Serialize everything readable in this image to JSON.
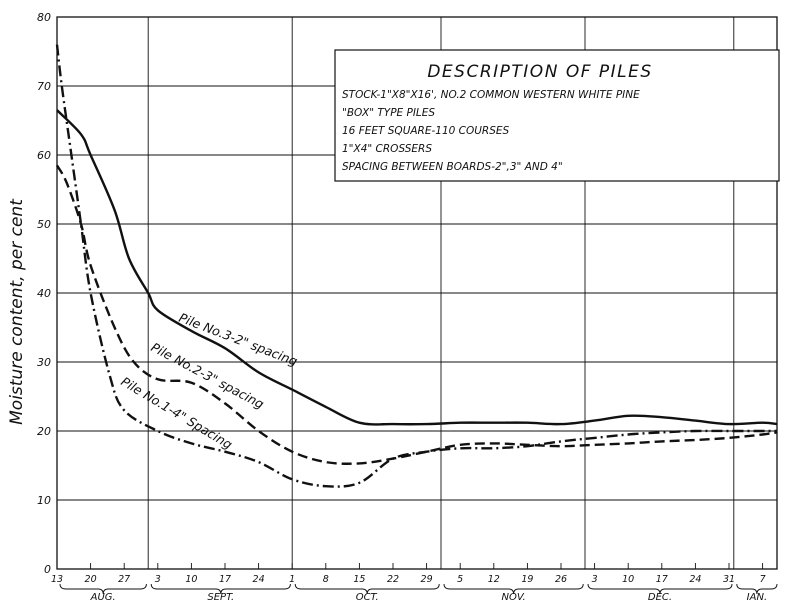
{
  "chart_data": {
    "type": "line",
    "ylabel": "Moisture content, per cent",
    "ylim": [
      0,
      80
    ],
    "yticks": [
      0,
      10,
      20,
      30,
      40,
      50,
      60,
      70,
      80
    ],
    "grid": true,
    "x_start": "Aug 13",
    "x_end": "Jan 10",
    "x_tick_labels": [
      "13",
      "20",
      "27",
      "3",
      "10",
      "17",
      "24",
      "1",
      "8",
      "15",
      "22",
      "29",
      "5",
      "12",
      "19",
      "26",
      "3",
      "10",
      "17",
      "24",
      "31",
      "7"
    ],
    "month_labels": [
      "AUG.",
      "SEPT.",
      "OCT.",
      "NOV.",
      "DEC.",
      "JAN."
    ],
    "description": {
      "title": "DESCRIPTION OF PILES",
      "lines": [
        "STOCK-1\"X8\"X16', NO.2 COMMON WESTERN WHITE PINE",
        "\"BOX\" TYPE PILES",
        "16 FEET SQUARE-110 COURSES",
        "1\"X4\" CROSSERS",
        "SPACING BETWEEN BOARDS-2\",3\" AND 4\""
      ]
    },
    "series": [
      {
        "name": "Pile No.3-2\" spacing",
        "style": "solid",
        "label": "Pile No.3-2\" spacing",
        "points": [
          [
            "Aug 13",
            66.5
          ],
          [
            "Aug 18",
            63
          ],
          [
            "Aug 20",
            60
          ],
          [
            "Aug 25",
            52
          ],
          [
            "Aug 28",
            45
          ],
          [
            "Sep 1",
            40
          ],
          [
            "Sep 3",
            37.5
          ],
          [
            "Sep 10",
            34.5
          ],
          [
            "Sep 17",
            32
          ],
          [
            "Sep 24",
            28.5
          ],
          [
            "Oct 1",
            26
          ],
          [
            "Oct 8",
            23.5
          ],
          [
            "Oct 15",
            21.2
          ],
          [
            "Oct 22",
            21
          ],
          [
            "Oct 29",
            21
          ],
          [
            "Nov 5",
            21.2
          ],
          [
            "Nov 12",
            21.2
          ],
          [
            "Nov 19",
            21.2
          ],
          [
            "Nov 26",
            21
          ],
          [
            "Dec 3",
            21.5
          ],
          [
            "Dec 10",
            22.2
          ],
          [
            "Dec 17",
            22
          ],
          [
            "Dec 24",
            21.5
          ],
          [
            "Dec 31",
            21
          ],
          [
            "Jan 7",
            21.2
          ],
          [
            "Jan 10",
            21
          ]
        ]
      },
      {
        "name": "Pile No.2-3\" spacing",
        "style": "dashed",
        "label": "Pile No.2-3\" spacing",
        "points": [
          [
            "Aug 13",
            58.5
          ],
          [
            "Aug 15",
            56
          ],
          [
            "Aug 18",
            50
          ],
          [
            "Aug 20",
            44
          ],
          [
            "Aug 25",
            35
          ],
          [
            "Aug 29",
            30
          ],
          [
            "Sep 3",
            27.5
          ],
          [
            "Sep 10",
            27
          ],
          [
            "Sep 17",
            24
          ],
          [
            "Sep 24",
            20
          ],
          [
            "Oct 1",
            17
          ],
          [
            "Oct 8",
            15.5
          ],
          [
            "Oct 15",
            15.3
          ],
          [
            "Oct 22",
            16
          ],
          [
            "Oct 29",
            17
          ],
          [
            "Nov 5",
            18
          ],
          [
            "Nov 12",
            18.2
          ],
          [
            "Nov 19",
            18
          ],
          [
            "Nov 26",
            17.8
          ],
          [
            "Dec 3",
            18
          ],
          [
            "Dec 10",
            18.2
          ],
          [
            "Dec 17",
            18.5
          ],
          [
            "Dec 24",
            18.7
          ],
          [
            "Dec 31",
            19
          ],
          [
            "Jan 7",
            19.5
          ],
          [
            "Jan 10",
            19.8
          ]
        ]
      },
      {
        "name": "Pile No.1-4\" Spacing",
        "style": "dashdot",
        "label": "Pile No.1-4\" Spacing",
        "points": [
          [
            "Aug 13",
            76
          ],
          [
            "Aug 14",
            70
          ],
          [
            "Aug 16",
            60
          ],
          [
            "Aug 18",
            50
          ],
          [
            "Aug 20",
            40
          ],
          [
            "Aug 24",
            28
          ],
          [
            "Aug 27",
            23
          ],
          [
            "Sep 3",
            20
          ],
          [
            "Sep 10",
            18.2
          ],
          [
            "Sep 17",
            17
          ],
          [
            "Sep 24",
            15.5
          ],
          [
            "Oct 1",
            13
          ],
          [
            "Oct 8",
            12
          ],
          [
            "Oct 15",
            12.5
          ],
          [
            "Oct 22",
            16
          ],
          [
            "Oct 29",
            17
          ],
          [
            "Nov 5",
            17.5
          ],
          [
            "Nov 12",
            17.5
          ],
          [
            "Nov 19",
            17.8
          ],
          [
            "Nov 26",
            18.5
          ],
          [
            "Dec 3",
            19
          ],
          [
            "Dec 10",
            19.5
          ],
          [
            "Dec 17",
            19.8
          ],
          [
            "Dec 24",
            20
          ],
          [
            "Dec 31",
            20
          ],
          [
            "Jan 7",
            20
          ],
          [
            "Jan 10",
            20
          ]
        ]
      }
    ]
  }
}
